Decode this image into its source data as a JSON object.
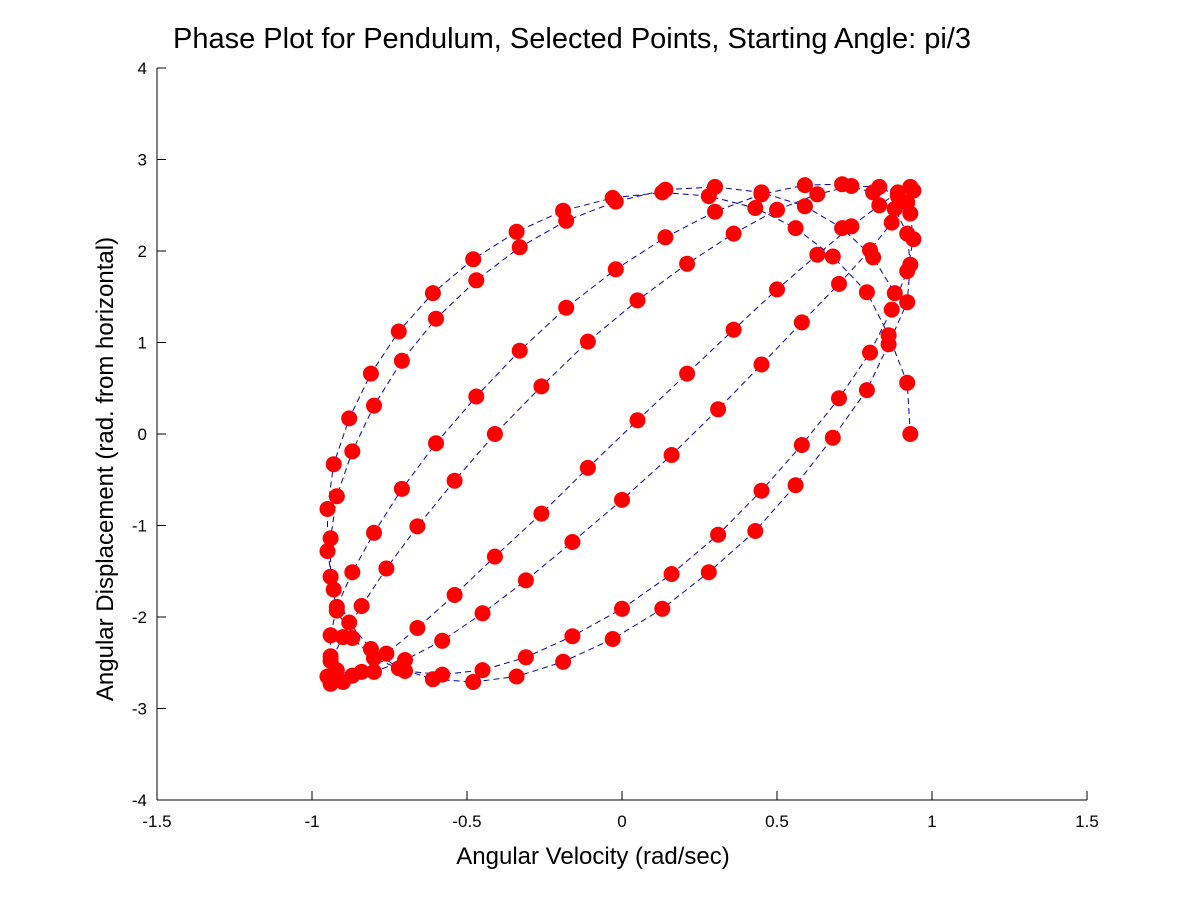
{
  "chart_data": {
    "type": "line",
    "title": "Phase Plot for Pendulum, Selected Points, Starting Angle:  pi/3",
    "xlabel": "Angular Velocity (rad/sec)",
    "ylabel": "Angular Displacement (rad. from horizontal)",
    "xlim": [
      -1.5,
      1.5
    ],
    "ylim": [
      -4,
      4
    ],
    "xticks": [
      -1.5,
      -1,
      -0.5,
      0,
      0.5,
      1,
      1.5
    ],
    "xtick_labels": [
      "-1.5",
      "-1",
      "-0.5",
      "0",
      "0.5",
      "1",
      "1.5"
    ],
    "yticks": [
      -4,
      -3,
      -2,
      -1,
      0,
      1,
      2,
      3,
      4
    ],
    "ytick_labels": [
      "-4",
      "-3",
      "-2",
      "-1",
      "0",
      "1",
      "2",
      "3",
      "4"
    ],
    "grid": false,
    "line_style": "dashed",
    "line_color": "#0000aa",
    "marker": "circle",
    "marker_color": "#ff0000",
    "series": [
      {
        "x": [
          0.93,
          0.92,
          0.86,
          0.79,
          0.68,
          0.56,
          0.43,
          0.28,
          0.13,
          -0.03,
          -0.19,
          -0.34,
          -0.48,
          -0.61,
          -0.72,
          -0.81,
          -0.88,
          -0.93,
          -0.95,
          -0.95,
          -0.93,
          -0.88,
          -0.81,
          -0.72,
          -0.61,
          -0.48,
          -0.34,
          -0.19,
          -0.03,
          0.13,
          0.28,
          0.43,
          0.56,
          0.68,
          0.79,
          0.86,
          0.92,
          0.93,
          0.92,
          0.88,
          0.81,
          0.71,
          0.59,
          0.45,
          0.3,
          0.14,
          -0.02,
          -0.18,
          -0.33,
          -0.47,
          -0.6,
          -0.71,
          -0.8,
          -0.87,
          -0.92,
          -0.94,
          -0.94,
          -0.92,
          -0.87,
          -0.8,
          -0.7,
          -0.58,
          -0.45,
          -0.31,
          -0.16,
          0.0,
          0.16,
          0.31,
          0.45,
          0.58,
          0.7,
          0.8,
          0.87,
          0.92,
          0.94,
          0.93,
          0.89,
          0.83,
          0.74,
          0.63,
          0.5,
          0.36,
          0.21,
          0.05,
          -0.11,
          -0.26,
          -0.41,
          -0.54,
          -0.66,
          -0.76,
          -0.84,
          -0.9,
          -0.94,
          -0.95,
          -0.94,
          -0.9,
          -0.84,
          -0.76,
          -0.66,
          -0.54,
          -0.41,
          -0.26,
          -0.11,
          0.05,
          0.21,
          0.36,
          0.5,
          0.63,
          0.74,
          0.83,
          0.89,
          0.93,
          0.94,
          0.92,
          0.87,
          0.8,
          0.7,
          0.58,
          0.45,
          0.31,
          0.16,
          0.0,
          -0.16,
          -0.31,
          -0.45,
          -0.58,
          -0.7,
          -0.8,
          -0.87,
          -0.92,
          -0.94,
          -0.94,
          -0.92,
          -0.87,
          -0.8,
          -0.71,
          -0.6,
          -0.47,
          -0.33,
          -0.18,
          -0.02,
          0.14,
          0.3,
          0.45,
          0.59,
          0.71,
          0.81,
          0.88
        ],
        "y": [
          0.0,
          0.56,
          1.08,
          1.55,
          1.94,
          2.25,
          2.47,
          2.6,
          2.64,
          2.58,
          2.44,
          2.21,
          1.91,
          1.54,
          1.12,
          0.66,
          0.17,
          -0.33,
          -0.82,
          -1.28,
          -1.7,
          -2.06,
          -2.35,
          -2.56,
          -2.68,
          -2.71,
          -2.65,
          -2.49,
          -2.24,
          -1.91,
          -1.51,
          -1.06,
          -0.56,
          -0.04,
          0.48,
          0.98,
          1.44,
          1.85,
          2.19,
          2.46,
          2.64,
          2.73,
          2.72,
          2.62,
          2.43,
          2.15,
          1.8,
          1.38,
          0.91,
          0.41,
          -0.1,
          -0.6,
          -1.08,
          -1.51,
          -1.89,
          -2.2,
          -2.43,
          -2.58,
          -2.64,
          -2.6,
          -2.47,
          -2.26,
          -1.96,
          -1.6,
          -1.18,
          -0.72,
          -0.23,
          0.27,
          0.76,
          1.22,
          1.64,
          2.01,
          2.31,
          2.53,
          2.66,
          2.7,
          2.64,
          2.5,
          2.27,
          1.96,
          1.58,
          1.14,
          0.66,
          0.15,
          -0.37,
          -0.87,
          -1.34,
          -1.76,
          -2.12,
          -2.4,
          -2.6,
          -2.71,
          -2.73,
          -2.65,
          -2.48,
          -2.22,
          -1.88,
          -1.47,
          -1.01,
          -0.51,
          0.0,
          0.52,
          1.01,
          1.46,
          1.86,
          2.19,
          2.45,
          2.62,
          2.71,
          2.7,
          2.6,
          2.41,
          2.13,
          1.78,
          1.36,
          0.89,
          0.39,
          -0.12,
          -0.62,
          -1.1,
          -1.53,
          -1.91,
          -2.21,
          -2.44,
          -2.58,
          -2.63,
          -2.59,
          -2.45,
          -2.23,
          -1.93,
          -1.56,
          -1.14,
          -0.68,
          -0.19,
          0.31,
          0.8,
          1.26,
          1.68,
          2.04,
          2.33,
          2.54,
          2.67,
          2.7,
          2.64,
          2.49,
          2.25,
          1.93,
          1.54
        ]
      }
    ]
  }
}
